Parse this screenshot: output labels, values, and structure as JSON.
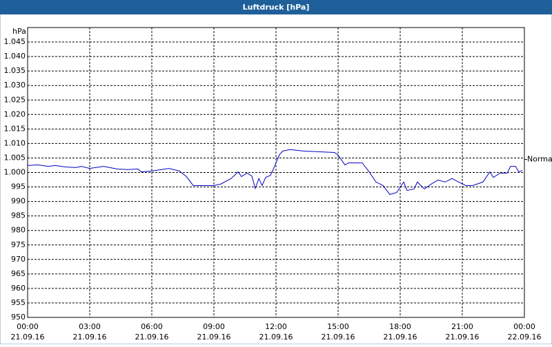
{
  "chart_data": {
    "type": "line",
    "title": "Luftdruck [hPa]",
    "y_label": "hPa",
    "x": [
      0,
      0.5,
      1.0,
      1.33,
      1.83,
      2.33,
      2.6,
      3.0,
      3.67,
      4.33,
      4.83,
      5.33,
      5.5,
      6.0,
      6.83,
      7.33,
      7.67,
      8.0,
      9.0,
      9.33,
      9.83,
      10.17,
      10.33,
      10.6,
      10.83,
      11.0,
      11.17,
      11.33,
      11.5,
      11.73,
      11.93,
      12.17,
      12.33,
      12.67,
      13.33,
      14.83,
      15.0,
      15.33,
      15.5,
      16.17,
      16.5,
      16.83,
      17.17,
      17.5,
      17.83,
      18.17,
      18.33,
      18.67,
      18.83,
      19.17,
      19.5,
      19.83,
      20.17,
      20.5,
      20.83,
      21.17,
      21.5,
      22.0,
      22.33,
      22.5,
      22.83,
      23.17,
      23.33,
      23.57,
      23.73,
      23.9
    ],
    "series": [
      {
        "name": "Luftdruck",
        "color": "#0000c0",
        "values": [
          1002.4,
          1002.6,
          1002.1,
          1002.4,
          1001.9,
          1001.7,
          1002.1,
          1001.4,
          1002.1,
          1001.2,
          1001.0,
          1001.2,
          1000.2,
          1000.5,
          1001.4,
          1000.5,
          998.6,
          995.5,
          995.5,
          996.0,
          997.9,
          1000.2,
          998.6,
          999.8,
          998.8,
          994.5,
          997.9,
          995.5,
          998.3,
          999.0,
          1002.1,
          1006.2,
          1007.4,
          1007.9,
          1007.4,
          1006.9,
          1006.0,
          1002.6,
          1003.3,
          1003.3,
          1000.2,
          996.7,
          995.5,
          992.4,
          993.1,
          996.7,
          993.8,
          994.3,
          996.7,
          994.3,
          996.0,
          997.4,
          996.7,
          997.9,
          996.7,
          995.5,
          995.5,
          996.7,
          1000.2,
          998.3,
          999.8,
          999.8,
          1002.1,
          1002.1,
          1000.2,
          1000.7
        ]
      }
    ],
    "xlim": [
      0,
      24
    ],
    "xticks": [
      {
        "value": 0,
        "label": "00:00\n21.09.16"
      },
      {
        "value": 3,
        "label": "03:00\n21.09.16"
      },
      {
        "value": 6,
        "label": "06:00\n21.09.16"
      },
      {
        "value": 9,
        "label": "09:00\n21.09.16"
      },
      {
        "value": 12,
        "label": "12:00\n21.09.16"
      },
      {
        "value": 15,
        "label": "15:00\n21.09.16"
      },
      {
        "value": 18,
        "label": "18:00\n21.09.16"
      },
      {
        "value": 21,
        "label": "21:00\n21.09.16"
      },
      {
        "value": 24,
        "label": "00:00\n22.09.16"
      }
    ],
    "ylim": [
      950,
      1050
    ],
    "yticks": [
      950,
      955,
      960,
      965,
      970,
      975,
      980,
      985,
      990,
      995,
      {
        "value": 1000,
        "label": "1.000"
      },
      {
        "value": 1005,
        "label": "1.005"
      },
      {
        "value": 1010,
        "label": "1.010"
      },
      {
        "value": 1015,
        "label": "1.015"
      },
      {
        "value": 1020,
        "label": "1.020"
      },
      {
        "value": 1025,
        "label": "1.025"
      },
      {
        "value": 1030,
        "label": "1.030"
      },
      {
        "value": 1035,
        "label": "1.035"
      },
      {
        "value": 1040,
        "label": "1.040"
      },
      {
        "value": 1045,
        "label": "1.045"
      }
    ],
    "grid": true,
    "annotations": [
      {
        "text": "Normal",
        "value": 1004.5
      }
    ]
  }
}
